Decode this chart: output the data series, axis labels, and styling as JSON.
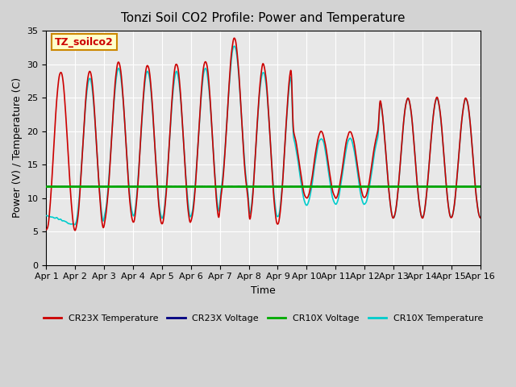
{
  "title": "Tonzi Soil CO2 Profile: Power and Temperature",
  "xlabel": "Time",
  "ylabel": "Power (V) / Temperature (C)",
  "xlim": [
    0,
    15
  ],
  "ylim": [
    0,
    35
  ],
  "yticks": [
    0,
    5,
    10,
    15,
    20,
    25,
    30,
    35
  ],
  "xtick_labels": [
    "Apr 1",
    "Apr 2",
    "Apr 3",
    "Apr 4",
    "Apr 5",
    "Apr 6",
    "Apr 7",
    "Apr 8",
    "Apr 9",
    "Apr 10",
    "Apr 11",
    "Apr 12",
    "Apr 13",
    "Apr 14",
    "Apr 15",
    "Apr 16"
  ],
  "background_color": "#d3d3d3",
  "plot_bg_color": "#e8e8e8",
  "cr23x_temp_color": "#cc0000",
  "cr23x_volt_color": "#000080",
  "cr10x_volt_color": "#00aa00",
  "cr10x_temp_color": "#00cccc",
  "cr10x_volt_value": 11.7,
  "annotation_text": "TZ_soilco2",
  "annotation_bg": "#ffffcc",
  "annotation_border": "#cc8800",
  "legend_entries": [
    "CR23X Temperature",
    "CR23X Voltage",
    "CR10X Voltage",
    "CR10X Temperature"
  ]
}
